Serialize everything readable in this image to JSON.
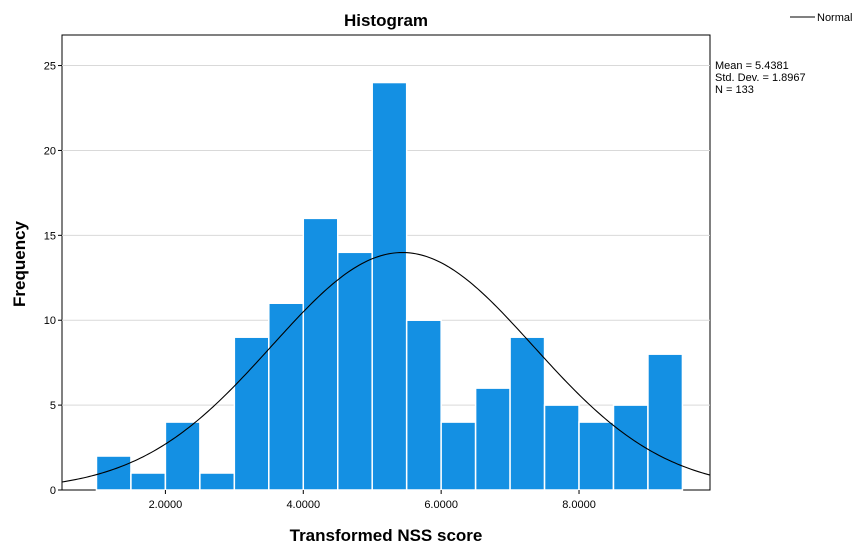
{
  "chart_data": {
    "type": "bar",
    "title": "Histogram",
    "xlabel": "Transformed NSS score",
    "ylabel": "Frequency",
    "bin_edges": [
      1.0,
      1.5,
      2.0,
      2.5,
      3.0,
      3.5,
      4.0,
      4.5,
      5.0,
      5.5,
      6.0,
      6.5,
      7.0,
      7.5,
      8.0,
      8.5,
      9.0,
      9.5
    ],
    "values": [
      2,
      1,
      4,
      1,
      9,
      11,
      16,
      14,
      24,
      10,
      4,
      6,
      9,
      5,
      4,
      5,
      8
    ],
    "xlim": [
      0.5,
      9.9
    ],
    "ylim": [
      0,
      26.8
    ],
    "x_ticks": [
      2.0,
      4.0,
      6.0,
      8.0
    ],
    "x_tick_labels": [
      "2.0000",
      "4.0000",
      "6.0000",
      "8.0000"
    ],
    "y_ticks": [
      0,
      5,
      10,
      15,
      20,
      25
    ],
    "y_tick_labels": [
      "0",
      "5",
      "10",
      "15",
      "20",
      "25"
    ],
    "grid": "horizontal",
    "bar_color": "#1490E3",
    "normal_curve": {
      "mean": 5.4381,
      "sd": 1.8967,
      "n": 133,
      "bin_width": 0.5,
      "color": "#000000"
    },
    "legend": {
      "label": "Normal",
      "position": "top-right"
    },
    "stats": [
      "Mean = 5.4381",
      "Std. Dev. = 1.8967",
      "N = 133"
    ]
  }
}
